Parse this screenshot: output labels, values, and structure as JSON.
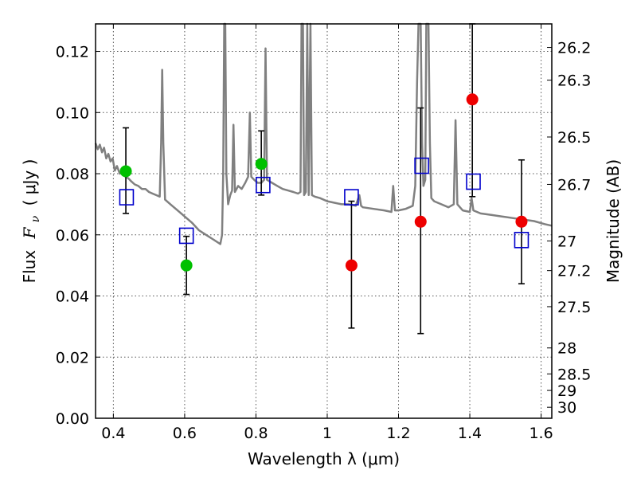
{
  "chart_data": {
    "type": "scatter",
    "xlabel": "Wavelength  λ (μm)",
    "ylabel": "Flux  F_ν  ( μJy )",
    "ylabel_parts": {
      "prefix": "Flux",
      "var": "F",
      "sub": "ν",
      "suffix": "( μJy )"
    },
    "y2label": "Magnitude (AB)",
    "xlim": [
      0.35,
      1.63
    ],
    "ylim": [
      0.0,
      0.129
    ],
    "grid": true,
    "x_ticks": [
      0.4,
      0.6,
      0.8,
      1.0,
      1.2,
      1.4,
      1.6
    ],
    "x_tick_labels": [
      "0.4",
      "0.6",
      "0.8",
      "1",
      "1.2",
      "1.4",
      "1.6"
    ],
    "y_ticks": [
      0.0,
      0.02,
      0.04,
      0.06,
      0.08,
      0.1,
      0.12
    ],
    "y_tick_labels": [
      "0.00",
      "0.02",
      "0.04",
      "0.06",
      "0.08",
      "0.10",
      "0.12"
    ],
    "mag_ticks": [
      {
        "label": "26.2",
        "flux": 0.1213
      },
      {
        "label": "26.3",
        "flux": 0.1106
      },
      {
        "label": "26.5",
        "flux": 0.092
      },
      {
        "label": "26.7",
        "flux": 0.0765
      },
      {
        "label": "27",
        "flux": 0.058
      },
      {
        "label": "27.2",
        "flux": 0.0483
      },
      {
        "label": "27.5",
        "flux": 0.0365
      },
      {
        "label": "28",
        "flux": 0.023
      },
      {
        "label": "28.5",
        "flux": 0.0145
      },
      {
        "label": "29",
        "flux": 0.0091
      },
      {
        "label": "30",
        "flux": 0.0036
      }
    ],
    "series": [
      {
        "kind": "errorbar",
        "color": "#000000",
        "points": [
          {
            "x": 0.435,
            "low": 0.067,
            "high": 0.095
          },
          {
            "x": 0.605,
            "low": 0.0405,
            "high": 0.0595
          },
          {
            "x": 0.815,
            "low": 0.073,
            "high": 0.094
          },
          {
            "x": 1.068,
            "low": 0.0295,
            "high": 0.071
          },
          {
            "x": 1.262,
            "low": 0.0277,
            "high": 0.1015
          },
          {
            "x": 1.407,
            "low": 0.0725,
            "high": 0.129
          },
          {
            "x": 1.545,
            "low": 0.044,
            "high": 0.0845
          }
        ]
      },
      {
        "kind": "model-photometry-squares",
        "color": "#0000cc",
        "points": [
          {
            "x": 0.437,
            "y": 0.0723
          },
          {
            "x": 0.605,
            "y": 0.0597
          },
          {
            "x": 0.82,
            "y": 0.0763
          },
          {
            "x": 1.068,
            "y": 0.0723
          },
          {
            "x": 1.265,
            "y": 0.0826
          },
          {
            "x": 1.41,
            "y": 0.0774
          },
          {
            "x": 1.545,
            "y": 0.0583
          }
        ]
      },
      {
        "kind": "observed-green",
        "color": "#00c000",
        "points": [
          {
            "x": 0.435,
            "y": 0.0808
          },
          {
            "x": 0.605,
            "y": 0.05
          },
          {
            "x": 0.815,
            "y": 0.0832
          }
        ]
      },
      {
        "kind": "observed-red",
        "color": "#ee0000",
        "points": [
          {
            "x": 1.068,
            "y": 0.05
          },
          {
            "x": 1.262,
            "y": 0.0643
          },
          {
            "x": 1.407,
            "y": 0.1043
          },
          {
            "x": 1.545,
            "y": 0.0643
          }
        ]
      },
      {
        "kind": "sed-model-line",
        "color": "#808080",
        "points": [
          [
            0.35,
            0.09
          ],
          [
            0.356,
            0.088
          ],
          [
            0.362,
            0.0895
          ],
          [
            0.368,
            0.087
          ],
          [
            0.374,
            0.0885
          ],
          [
            0.38,
            0.085
          ],
          [
            0.386,
            0.0865
          ],
          [
            0.392,
            0.084
          ],
          [
            0.398,
            0.085
          ],
          [
            0.404,
            0.081
          ],
          [
            0.41,
            0.0825
          ],
          [
            0.418,
            0.08
          ],
          [
            0.426,
            0.0805
          ],
          [
            0.434,
            0.079
          ],
          [
            0.442,
            0.0785
          ],
          [
            0.45,
            0.0775
          ],
          [
            0.46,
            0.0765
          ],
          [
            0.47,
            0.076
          ],
          [
            0.48,
            0.075
          ],
          [
            0.49,
            0.075
          ],
          [
            0.5,
            0.074
          ],
          [
            0.51,
            0.0735
          ],
          [
            0.52,
            0.073
          ],
          [
            0.53,
            0.0725
          ],
          [
            0.534,
            0.09
          ],
          [
            0.537,
            0.114
          ],
          [
            0.54,
            0.09
          ],
          [
            0.545,
            0.0715
          ],
          [
            0.56,
            0.07
          ],
          [
            0.58,
            0.068
          ],
          [
            0.6,
            0.066
          ],
          [
            0.62,
            0.064
          ],
          [
            0.64,
            0.0615
          ],
          [
            0.66,
            0.06
          ],
          [
            0.68,
            0.0585
          ],
          [
            0.7,
            0.057
          ],
          [
            0.705,
            0.06
          ],
          [
            0.708,
            0.08
          ],
          [
            0.711,
            0.129
          ],
          [
            0.714,
            0.129
          ],
          [
            0.717,
            0.08
          ],
          [
            0.722,
            0.07
          ],
          [
            0.728,
            0.073
          ],
          [
            0.733,
            0.0745
          ],
          [
            0.737,
            0.096
          ],
          [
            0.741,
            0.074
          ],
          [
            0.75,
            0.076
          ],
          [
            0.76,
            0.075
          ],
          [
            0.77,
            0.077
          ],
          [
            0.778,
            0.079
          ],
          [
            0.783,
            0.1
          ],
          [
            0.787,
            0.079
          ],
          [
            0.795,
            0.078
          ],
          [
            0.805,
            0.077
          ],
          [
            0.815,
            0.077
          ],
          [
            0.823,
            0.078
          ],
          [
            0.827,
            0.121
          ],
          [
            0.831,
            0.078
          ],
          [
            0.845,
            0.077
          ],
          [
            0.86,
            0.076
          ],
          [
            0.875,
            0.075
          ],
          [
            0.89,
            0.0745
          ],
          [
            0.905,
            0.074
          ],
          [
            0.918,
            0.0735
          ],
          [
            0.925,
            0.074
          ],
          [
            0.928,
            0.129
          ],
          [
            0.932,
            0.129
          ],
          [
            0.935,
            0.073
          ],
          [
            0.94,
            0.074
          ],
          [
            0.944,
            0.129
          ],
          [
            0.948,
            0.073
          ],
          [
            0.953,
            0.129
          ],
          [
            0.957,
            0.073
          ],
          [
            0.965,
            0.0725
          ],
          [
            0.98,
            0.072
          ],
          [
            1.0,
            0.071
          ],
          [
            1.02,
            0.0705
          ],
          [
            1.04,
            0.07
          ],
          [
            1.06,
            0.07
          ],
          [
            1.08,
            0.0695
          ],
          [
            1.09,
            0.073
          ],
          [
            1.095,
            0.0695
          ],
          [
            1.1,
            0.069
          ],
          [
            1.13,
            0.0685
          ],
          [
            1.16,
            0.068
          ],
          [
            1.18,
            0.0675
          ],
          [
            1.185,
            0.076
          ],
          [
            1.19,
            0.068
          ],
          [
            1.2,
            0.068
          ],
          [
            1.22,
            0.0685
          ],
          [
            1.24,
            0.0695
          ],
          [
            1.247,
            0.076
          ],
          [
            1.252,
            0.11
          ],
          [
            1.256,
            0.129
          ],
          [
            1.262,
            0.129
          ],
          [
            1.266,
            0.09
          ],
          [
            1.27,
            0.076
          ],
          [
            1.275,
            0.078
          ],
          [
            1.278,
            0.129
          ],
          [
            1.284,
            0.129
          ],
          [
            1.288,
            0.09
          ],
          [
            1.292,
            0.072
          ],
          [
            1.3,
            0.071
          ],
          [
            1.32,
            0.07
          ],
          [
            1.34,
            0.069
          ],
          [
            1.355,
            0.07
          ],
          [
            1.36,
            0.0975
          ],
          [
            1.365,
            0.07
          ],
          [
            1.38,
            0.068
          ],
          [
            1.4,
            0.0675
          ],
          [
            1.405,
            0.072
          ],
          [
            1.41,
            0.068
          ],
          [
            1.43,
            0.067
          ],
          [
            1.46,
            0.0665
          ],
          [
            1.49,
            0.066
          ],
          [
            1.52,
            0.0655
          ],
          [
            1.55,
            0.065
          ],
          [
            1.58,
            0.0645
          ],
          [
            1.61,
            0.0635
          ],
          [
            1.63,
            0.063
          ]
        ]
      }
    ]
  }
}
